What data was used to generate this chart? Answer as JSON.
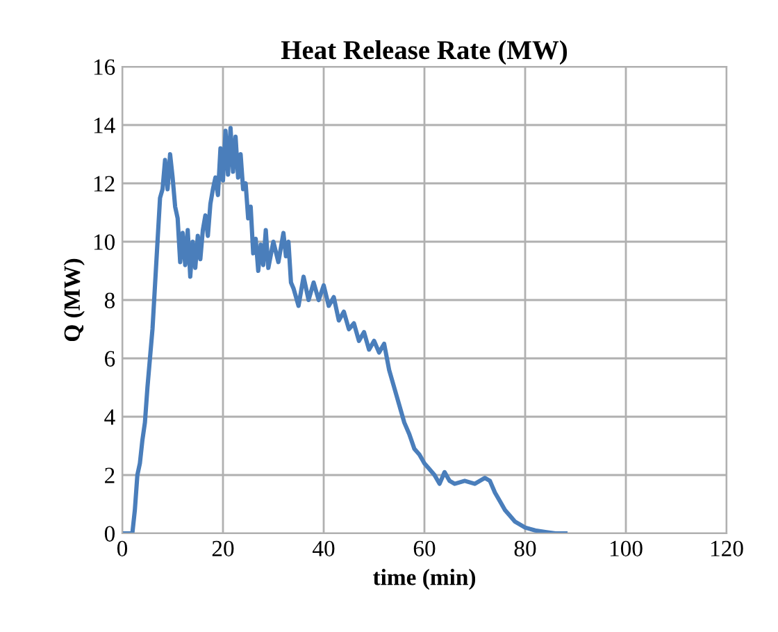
{
  "chart_data": {
    "type": "line",
    "title": "Heat Release Rate (MW)",
    "xlabel": "time (min)",
    "ylabel": "Q (MW)",
    "xlim": [
      0,
      120
    ],
    "xticks": [
      0,
      20,
      40,
      60,
      80,
      100,
      120
    ],
    "ylim": [
      0,
      16
    ],
    "yticks": [
      0,
      2,
      4,
      6,
      8,
      10,
      12,
      14,
      16
    ],
    "grid": true,
    "legend": false,
    "marker": "none",
    "line_style": "solid",
    "series": [
      {
        "color": "#4a7ebb",
        "x": [
          0,
          2,
          2.5,
          3,
          3.5,
          4,
          4.5,
          5,
          5.5,
          6,
          6.5,
          7,
          7.5,
          8,
          8.5,
          9,
          9.5,
          10,
          10.5,
          11,
          11.5,
          12,
          12.5,
          13,
          13.5,
          14,
          14.5,
          15,
          15.5,
          16,
          16.5,
          17,
          17.5,
          18,
          18.5,
          19,
          19.5,
          20,
          20.5,
          21,
          21.5,
          22,
          22.5,
          23,
          23.5,
          24,
          24.5,
          25,
          25.5,
          26,
          26.5,
          27,
          27.5,
          28,
          28.5,
          29,
          30,
          31,
          32,
          32.5,
          33,
          33.5,
          34,
          35,
          36,
          37,
          38,
          39,
          40,
          41,
          42,
          43,
          44,
          45,
          46,
          47,
          48,
          49,
          50,
          51,
          52,
          53,
          54,
          55,
          56,
          57,
          58,
          59,
          60,
          61,
          62,
          63,
          64,
          65,
          66,
          68,
          70,
          72,
          73,
          74,
          75,
          76,
          77,
          78,
          79,
          80,
          82,
          84,
          86,
          88
        ],
        "values": [
          0,
          0,
          0.8,
          2,
          2.4,
          3.2,
          3.8,
          5,
          6,
          7,
          8.5,
          10,
          11.5,
          11.8,
          12.8,
          11.8,
          13,
          12.2,
          11.2,
          10.8,
          9.3,
          10.3,
          9.2,
          10.4,
          8.8,
          10,
          9.1,
          10.2,
          9.4,
          10.4,
          10.9,
          10.2,
          11.3,
          11.8,
          12.2,
          11.6,
          13.2,
          12.1,
          13.8,
          12.3,
          13.9,
          12.4,
          13.6,
          12.2,
          13,
          11.8,
          12,
          10.8,
          11.2,
          9.6,
          10.1,
          9,
          9.9,
          9.2,
          10.4,
          9.1,
          10,
          9.3,
          10.3,
          9.5,
          10,
          8.6,
          8.4,
          7.8,
          8.8,
          8,
          8.6,
          8,
          8.5,
          7.8,
          8.1,
          7.3,
          7.6,
          7,
          7.2,
          6.6,
          6.9,
          6.3,
          6.6,
          6.2,
          6.5,
          5.6,
          5,
          4.4,
          3.8,
          3.4,
          2.9,
          2.7,
          2.4,
          2.2,
          2,
          1.7,
          2.1,
          1.8,
          1.7,
          1.8,
          1.7,
          1.9,
          1.8,
          1.4,
          1.1,
          0.8,
          0.6,
          0.4,
          0.3,
          0.2,
          0.1,
          0.05,
          0,
          0
        ]
      }
    ]
  }
}
